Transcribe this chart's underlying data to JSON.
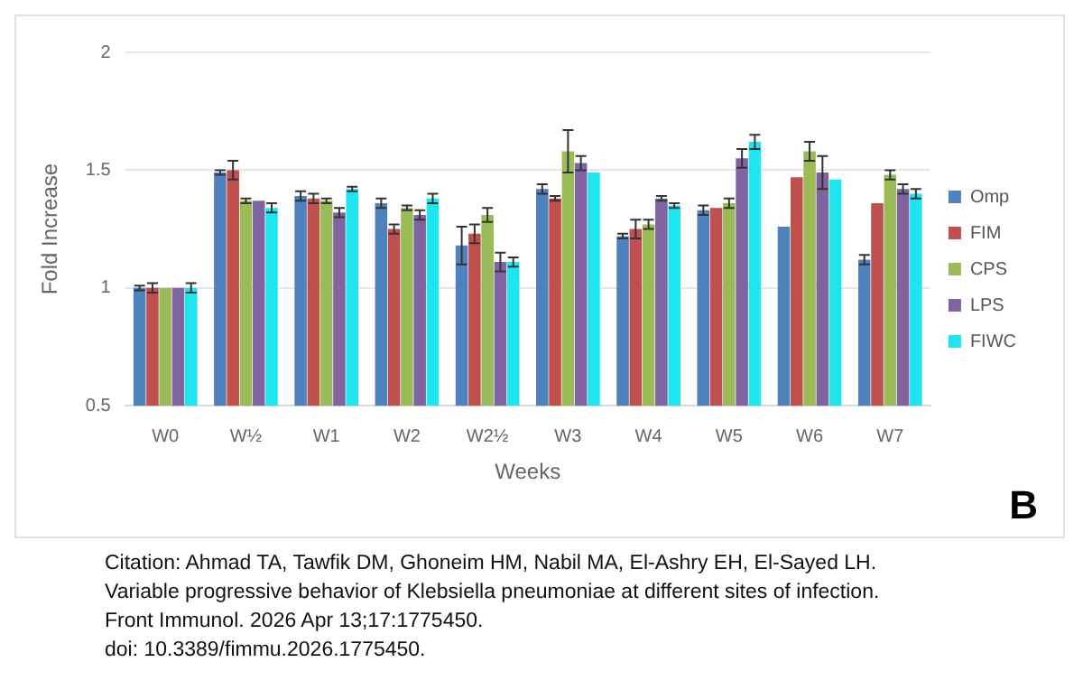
{
  "chart_data": {
    "type": "bar",
    "xlabel": "Weeks",
    "ylabel": "Fold Increase",
    "categories": [
      "W0",
      "W½",
      "W1",
      "W2",
      "W2½",
      "W3",
      "W4",
      "W5",
      "W6",
      "W7"
    ],
    "series": [
      {
        "name": "Omp",
        "color": "#4f81bd",
        "values": [
          1.0,
          1.49,
          1.39,
          1.36,
          1.18,
          1.42,
          1.22,
          1.33,
          1.26,
          1.12
        ],
        "errors": [
          0.01,
          0.01,
          0.02,
          0.02,
          0.08,
          0.02,
          0.01,
          0.02,
          null,
          0.02
        ]
      },
      {
        "name": "FIM",
        "color": "#c0504d",
        "values": [
          1.0,
          1.5,
          1.38,
          1.25,
          1.23,
          1.38,
          1.25,
          1.34,
          1.47,
          1.36
        ],
        "errors": [
          0.02,
          0.04,
          0.02,
          0.02,
          0.04,
          0.01,
          0.04,
          null,
          null,
          null
        ]
      },
      {
        "name": "CPS",
        "color": "#9bbb59",
        "values": [
          1.0,
          1.37,
          1.37,
          1.34,
          1.31,
          1.58,
          1.27,
          1.36,
          1.58,
          1.48
        ],
        "errors": [
          null,
          0.01,
          0.01,
          0.01,
          0.03,
          0.09,
          0.02,
          0.02,
          0.04,
          0.02
        ]
      },
      {
        "name": "LPS",
        "color": "#8064a2",
        "values": [
          1.0,
          1.37,
          1.32,
          1.31,
          1.11,
          1.53,
          1.38,
          1.55,
          1.49,
          1.42
        ],
        "errors": [
          null,
          null,
          0.02,
          0.02,
          0.04,
          0.03,
          0.01,
          0.04,
          0.07,
          0.02
        ]
      },
      {
        "name": "FIWC",
        "color": "#1fe5f0",
        "values": [
          1.0,
          1.34,
          1.42,
          1.38,
          1.11,
          1.49,
          1.35,
          1.62,
          1.46,
          1.4
        ],
        "errors": [
          0.02,
          0.02,
          0.01,
          0.02,
          0.02,
          null,
          0.01,
          0.03,
          null,
          0.02
        ]
      }
    ],
    "ylim": [
      0.5,
      2
    ],
    "yticks": [
      0.5,
      1,
      1.5,
      2
    ],
    "grid": "y",
    "legend": "right",
    "annotations": [
      "B",
      "Citation: Ahmad TA, Tawfik DM, Ghoneim HM, Nabil MA, El-Ashry EH, El-Sayed LH.",
      "Variable progressive behavior of Klebsiella pneumoniae at different sites of infection.",
      "Front Immunol. 2026 Apr 13;17:1775450.",
      "doi: 10.3389/fimmu.2026.1775450."
    ]
  }
}
